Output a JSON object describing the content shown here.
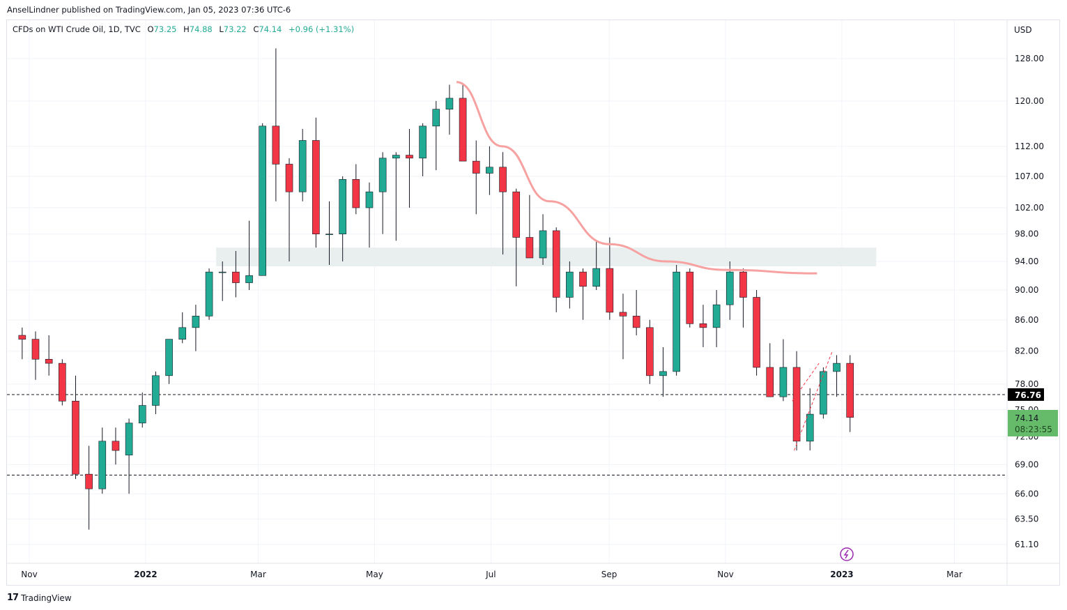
{
  "publisher": "AnselLindner published on TradingView.com, Jan 05, 2023 07:36 UTC-6",
  "legend": {
    "symbol": "CFDs on WTI Crude Oil, 1D, TVC",
    "o_label": "O",
    "o": "73.25",
    "h_label": "H",
    "h": "74.88",
    "l_label": "L",
    "l": "73.22",
    "c_label": "C",
    "c": "74.14",
    "change": "+0.96 (+1.31%)"
  },
  "brand": "TradingView",
  "colors": {
    "up": "#22ab94",
    "down": "#f23645",
    "wick": "#131722",
    "curve": "#f7a1a1",
    "zone": "#e8efee",
    "price_label": "#66bb6a",
    "line_label": "#000000"
  },
  "chart_data": {
    "type": "candlestick",
    "title": "CFDs on WTI Crude Oil, 1D, TVC",
    "currency": "USD",
    "y_scale": "log",
    "ylim": [
      60.5,
      131
    ],
    "y_ticks": [
      "128.00",
      "120.00",
      "112.00",
      "107.00",
      "102.00",
      "98.00",
      "94.00",
      "90.00",
      "86.00",
      "82.00",
      "78.00",
      "75.00",
      "72.00",
      "69.00",
      "66.00",
      "63.50",
      "61.10"
    ],
    "x_ticks": [
      {
        "date": "2021-11-01",
        "label": "Nov"
      },
      {
        "date": "2022-01-01",
        "label": "2022"
      },
      {
        "date": "2022-03-01",
        "label": "Mar"
      },
      {
        "date": "2022-05-01",
        "label": "May"
      },
      {
        "date": "2022-07-01",
        "label": "Jul"
      },
      {
        "date": "2022-09-01",
        "label": "Sep"
      },
      {
        "date": "2022-11-01",
        "label": "Nov"
      },
      {
        "date": "2023-01-01",
        "label": "2023"
      },
      {
        "date": "2023-03-01",
        "label": "Mar"
      }
    ],
    "grid": true,
    "ohlc_weekly_approx": [
      [
        "2021-10-25",
        84,
        85,
        81,
        83.5
      ],
      [
        "2021-11-01",
        83.5,
        84.5,
        78.5,
        81
      ],
      [
        "2021-11-08",
        81,
        84,
        79,
        80.5
      ],
      [
        "2021-11-15",
        80.5,
        81,
        75.5,
        76
      ],
      [
        "2021-11-22",
        76,
        79,
        67.5,
        68
      ],
      [
        "2021-11-29",
        68,
        71,
        62.5,
        66.5
      ],
      [
        "2021-12-06",
        66.5,
        73,
        66,
        71.5
      ],
      [
        "2021-12-13",
        71.5,
        73,
        69,
        70.5
      ],
      [
        "2021-12-20",
        70,
        74,
        66,
        73.5
      ],
      [
        "2021-12-27",
        73.5,
        77,
        73,
        75.5
      ],
      [
        "2022-01-03",
        75.5,
        79.5,
        74.5,
        79
      ],
      [
        "2022-01-10",
        79,
        83,
        78,
        83.5
      ],
      [
        "2022-01-17",
        83.5,
        87,
        83,
        85
      ],
      [
        "2022-01-24",
        85,
        88,
        82,
        86.5
      ],
      [
        "2022-01-31",
        86.5,
        93,
        86,
        92.5
      ],
      [
        "2022-02-07",
        92.5,
        94,
        88.5,
        92.5
      ],
      [
        "2022-02-14",
        92.5,
        95.5,
        89,
        91
      ],
      [
        "2022-02-21",
        91,
        100,
        90,
        92
      ],
      [
        "2022-02-28",
        92,
        116,
        95,
        115.5
      ],
      [
        "2022-03-07",
        115.5,
        130,
        103,
        109
      ],
      [
        "2022-03-14",
        109,
        110,
        94,
        104.5
      ],
      [
        "2022-03-21",
        104.5,
        115,
        103,
        113
      ],
      [
        "2022-03-28",
        113,
        117,
        96,
        98
      ],
      [
        "2022-04-04",
        98,
        103,
        93.5,
        98
      ],
      [
        "2022-04-11",
        98,
        107,
        94,
        106.5
      ],
      [
        "2022-04-18",
        106.5,
        109,
        101,
        102
      ],
      [
        "2022-04-25",
        102,
        106,
        96,
        104.5
      ],
      [
        "2022-05-02",
        104.5,
        111,
        98,
        110
      ],
      [
        "2022-05-09",
        110,
        111,
        97,
        110.5
      ],
      [
        "2022-05-16",
        110.5,
        115,
        102,
        110
      ],
      [
        "2022-05-23",
        110,
        116,
        107,
        115.5
      ],
      [
        "2022-05-30",
        115.5,
        120,
        108,
        118.5
      ],
      [
        "2022-06-06",
        118.5,
        123,
        114,
        120.5
      ],
      [
        "2022-06-13",
        120.5,
        123,
        115,
        109.5
      ],
      [
        "2022-06-20",
        109.5,
        113,
        101,
        107.5
      ],
      [
        "2022-06-27",
        107.5,
        112,
        104,
        108.5
      ],
      [
        "2022-07-04",
        108.5,
        111,
        95,
        104.5
      ],
      [
        "2022-07-11",
        104.5,
        105,
        90.5,
        97.5
      ],
      [
        "2022-07-18",
        97.5,
        104,
        94.5,
        94.5
      ],
      [
        "2022-07-25",
        94.5,
        101,
        93.5,
        98.5
      ],
      [
        "2022-08-01",
        98.5,
        99,
        87,
        89
      ],
      [
        "2022-08-08",
        89,
        94,
        87.5,
        92.5
      ],
      [
        "2022-08-15",
        92.5,
        93,
        86,
        90.5
      ],
      [
        "2022-08-22",
        90.5,
        97,
        90,
        93
      ],
      [
        "2022-08-29",
        93,
        97.5,
        86,
        87
      ],
      [
        "2022-09-05",
        87,
        89.5,
        81,
        86.5
      ],
      [
        "2022-09-12",
        86.5,
        90,
        84,
        85
      ],
      [
        "2022-09-19",
        85,
        86,
        78,
        79
      ],
      [
        "2022-09-26",
        79,
        82.5,
        76.5,
        79.5
      ],
      [
        "2022-10-03",
        79.5,
        93.5,
        79,
        92.5
      ],
      [
        "2022-10-10",
        92.5,
        93,
        85,
        85.5
      ],
      [
        "2022-10-17",
        85.5,
        88,
        82.5,
        85
      ],
      [
        "2022-10-24",
        85,
        90,
        82.5,
        88
      ],
      [
        "2022-10-31",
        88,
        94,
        86,
        92.5
      ],
      [
        "2022-11-07",
        92.5,
        93,
        85,
        89
      ],
      [
        "2022-11-14",
        89,
        90,
        79,
        80
      ],
      [
        "2022-11-21",
        80,
        83,
        76.5,
        76.5
      ],
      [
        "2022-11-28",
        76.5,
        83.5,
        76,
        80
      ],
      [
        "2022-12-05",
        80,
        82,
        70.5,
        71.5
      ],
      [
        "2022-12-12",
        71.5,
        77.5,
        70.5,
        74.5
      ],
      [
        "2022-12-19",
        74.5,
        80,
        74,
        79.5
      ],
      [
        "2022-12-26",
        79.5,
        81.5,
        76.5,
        80.5
      ],
      [
        "2023-01-02",
        80.5,
        81.5,
        72.5,
        74.14
      ]
    ],
    "horizontal_lines": [
      {
        "price": 76.76,
        "label": "76.76"
      },
      {
        "price": 67.9
      }
    ],
    "zone": {
      "from": "2022-02-07",
      "to": "2023-01-19",
      "low": 93.3,
      "high": 96.0
    },
    "curve": [
      [
        "2022-06-13",
        123.5
      ],
      [
        "2022-07-07",
        112
      ],
      [
        "2022-08-01",
        103
      ],
      [
        "2022-09-01",
        96.5
      ],
      [
        "2022-10-01",
        94
      ],
      [
        "2022-11-01",
        92.8
      ],
      [
        "2022-12-19",
        92.3
      ]
    ],
    "channel_lines": [
      [
        [
          "2022-12-07",
          70.5
        ],
        [
          "2022-12-27",
          82
        ]
      ],
      [
        [
          "2022-12-06",
          76
        ],
        [
          "2022-12-20",
          80.5
        ]
      ]
    ],
    "last_price": {
      "value": "74.14",
      "countdown": "08:23:55"
    }
  }
}
